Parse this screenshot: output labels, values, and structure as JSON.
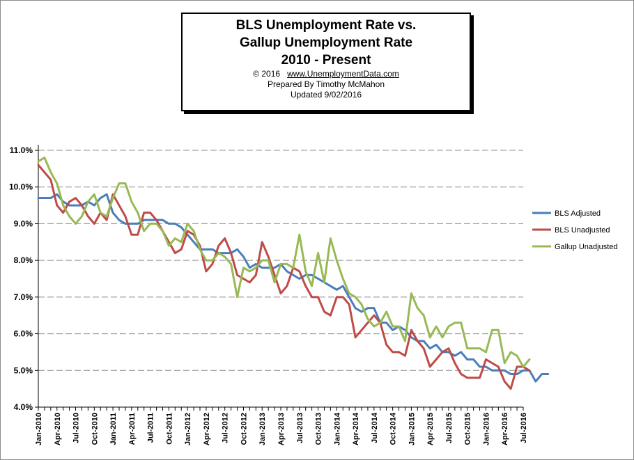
{
  "title_box": {
    "line1": "BLS Unemployment Rate vs.",
    "line2": "Gallup Unemployment Rate",
    "line3": "2010 - Present",
    "copyright": "© 2016",
    "website": "www.UnemploymentData.com",
    "prepared_by": "Prepared  By Timothy McMahon",
    "updated": "Updated  9/02/2016"
  },
  "chart_data": {
    "type": "line",
    "y_ticks": [
      "4.0%",
      "5.0%",
      "6.0%",
      "7.0%",
      "8.0%",
      "9.0%",
      "10.0%",
      "11.0%"
    ],
    "ylim": [
      4.0,
      11.0
    ],
    "x_start": "Jan-2010",
    "x_tick_labels": [
      "Jan-2010",
      "Apr-2010",
      "Jul-2010",
      "Oct-2010",
      "Jan-2011",
      "Apr-2011",
      "Jul-2011",
      "Oct-2011",
      "Jan-2012",
      "Apr-2012",
      "Jul-2012",
      "Oct-2012",
      "Jan-2013",
      "Apr-2013",
      "Jul-2013",
      "Oct-2013",
      "Jan-2014",
      "Apr-2014",
      "Jul-2014",
      "Oct-2014",
      "Jan-2015",
      "Apr-2015",
      "Jul-2015",
      "Oct-2015",
      "Jan-2016",
      "Apr-2016",
      "Jul-2016"
    ],
    "grid": "horizontal-dashed",
    "legend_position": "right",
    "series": [
      {
        "name": "BLS Adjusted",
        "color": "#4a7ebb",
        "values": [
          9.7,
          9.7,
          9.7,
          9.8,
          9.6,
          9.5,
          9.5,
          9.5,
          9.6,
          9.5,
          9.7,
          9.8,
          9.3,
          9.1,
          9.0,
          9.0,
          9.0,
          9.1,
          9.1,
          9.1,
          9.1,
          9.0,
          9.0,
          8.9,
          8.7,
          8.5,
          8.3,
          8.3,
          8.3,
          8.2,
          8.2,
          8.2,
          8.3,
          8.1,
          7.8,
          7.9,
          7.8,
          7.8,
          7.8,
          7.9,
          7.7,
          7.6,
          7.5,
          7.6,
          7.6,
          7.5,
          7.4,
          7.3,
          7.2,
          7.3,
          7.0,
          6.7,
          6.6,
          6.7,
          6.7,
          6.3,
          6.3,
          6.1,
          6.2,
          6.1,
          5.9,
          5.8,
          5.8,
          5.6,
          5.7,
          5.5,
          5.5,
          5.4,
          5.5,
          5.3,
          5.3,
          5.1,
          5.1,
          5.0,
          5.0,
          5.0,
          4.9,
          4.9,
          5.0,
          5.0,
          4.7,
          4.9,
          4.9
        ]
      },
      {
        "name": "BLS Unadjusted",
        "color": "#be4b48",
        "values": [
          10.6,
          10.4,
          10.2,
          9.5,
          9.3,
          9.6,
          9.7,
          9.5,
          9.2,
          9.0,
          9.3,
          9.1,
          9.8,
          9.5,
          9.2,
          8.7,
          8.7,
          9.3,
          9.3,
          9.1,
          8.8,
          8.5,
          8.2,
          8.3,
          8.8,
          8.7,
          8.4,
          7.7,
          7.9,
          8.4,
          8.6,
          8.2,
          7.6,
          7.5,
          7.4,
          7.6,
          8.5,
          8.1,
          7.6,
          7.1,
          7.3,
          7.8,
          7.7,
          7.3,
          7.0,
          7.0,
          6.6,
          6.5,
          7.0,
          7.0,
          6.8,
          5.9,
          6.1,
          6.3,
          6.5,
          6.3,
          5.7,
          5.5,
          5.5,
          5.4,
          6.1,
          5.8,
          5.6,
          5.1,
          5.3,
          5.5,
          5.6,
          5.2,
          4.9,
          4.8,
          4.8,
          4.8,
          5.3,
          5.2,
          5.1,
          4.7,
          4.5,
          5.1,
          5.1,
          5.0
        ]
      },
      {
        "name": "Gallup Unadjusted",
        "color": "#98b954",
        "values": [
          10.7,
          10.8,
          10.4,
          10.1,
          9.5,
          9.2,
          9.0,
          9.2,
          9.6,
          9.8,
          9.3,
          9.2,
          9.7,
          10.1,
          10.1,
          9.6,
          9.3,
          8.8,
          9.0,
          9.0,
          8.8,
          8.4,
          8.6,
          8.5,
          9.0,
          8.8,
          8.3,
          8.0,
          8.0,
          8.2,
          8.1,
          7.9,
          7.0,
          7.8,
          7.7,
          7.8,
          8.0,
          8.0,
          7.4,
          7.9,
          7.9,
          7.8,
          8.7,
          7.7,
          7.3,
          8.2,
          7.4,
          8.6,
          8.0,
          7.5,
          7.1,
          7.0,
          6.8,
          6.4,
          6.2,
          6.3,
          6.6,
          6.2,
          6.2,
          5.8,
          7.1,
          6.7,
          6.5,
          5.9,
          6.2,
          5.9,
          6.2,
          6.3,
          6.3,
          5.6,
          5.6,
          5.6,
          5.5,
          6.1,
          6.1,
          5.2,
          5.5,
          5.4,
          5.1,
          5.3
        ]
      }
    ]
  }
}
